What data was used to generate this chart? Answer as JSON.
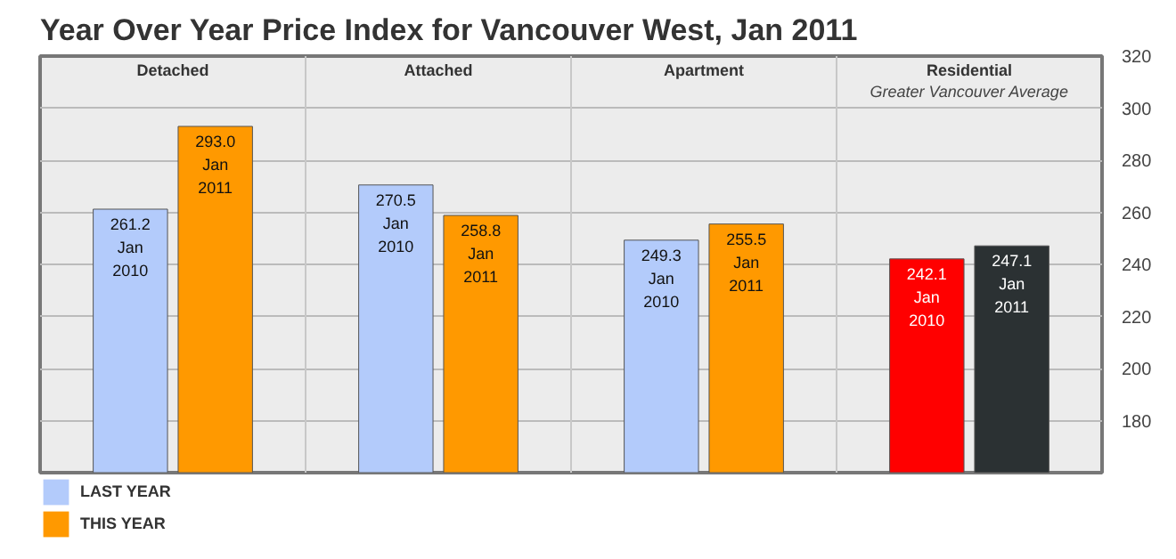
{
  "chart_data": {
    "type": "bar",
    "title": "Year Over Year Price Index for Vancouver West, Jan 2011",
    "categories": [
      "Detached",
      "Attached",
      "Apartment",
      "Residential\nGreater Vancouver Average"
    ],
    "series": [
      {
        "name": "LAST YEAR",
        "color": "#b3cbfb",
        "colors": [
          "#b3cbfb",
          "#b3cbfb",
          "#b3cbfb",
          "#ff0000"
        ],
        "values": [
          261.2,
          270.5,
          249.3,
          242.1
        ],
        "value_labels": [
          "261.2\nJan\n2010",
          "270.5\nJan\n2010",
          "249.3\nJan\n2010",
          "242.1\nJan\n2010"
        ]
      },
      {
        "name": "THIS YEAR",
        "color": "#ff9900",
        "colors": [
          "#ff9900",
          "#ff9900",
          "#ff9900",
          "#2b3133"
        ],
        "values": [
          293.0,
          258.8,
          255.5,
          247.1
        ],
        "value_labels": [
          "293.0\nJan\n2011",
          "258.8\nJan\n2011",
          "255.5\nJan\n2011",
          "247.1\nJan\n2011"
        ]
      }
    ],
    "ylim": [
      160,
      320
    ],
    "yticks": [
      180,
      200,
      220,
      240,
      260,
      280,
      300,
      320
    ],
    "grid": "y",
    "legend": "bottom left"
  }
}
